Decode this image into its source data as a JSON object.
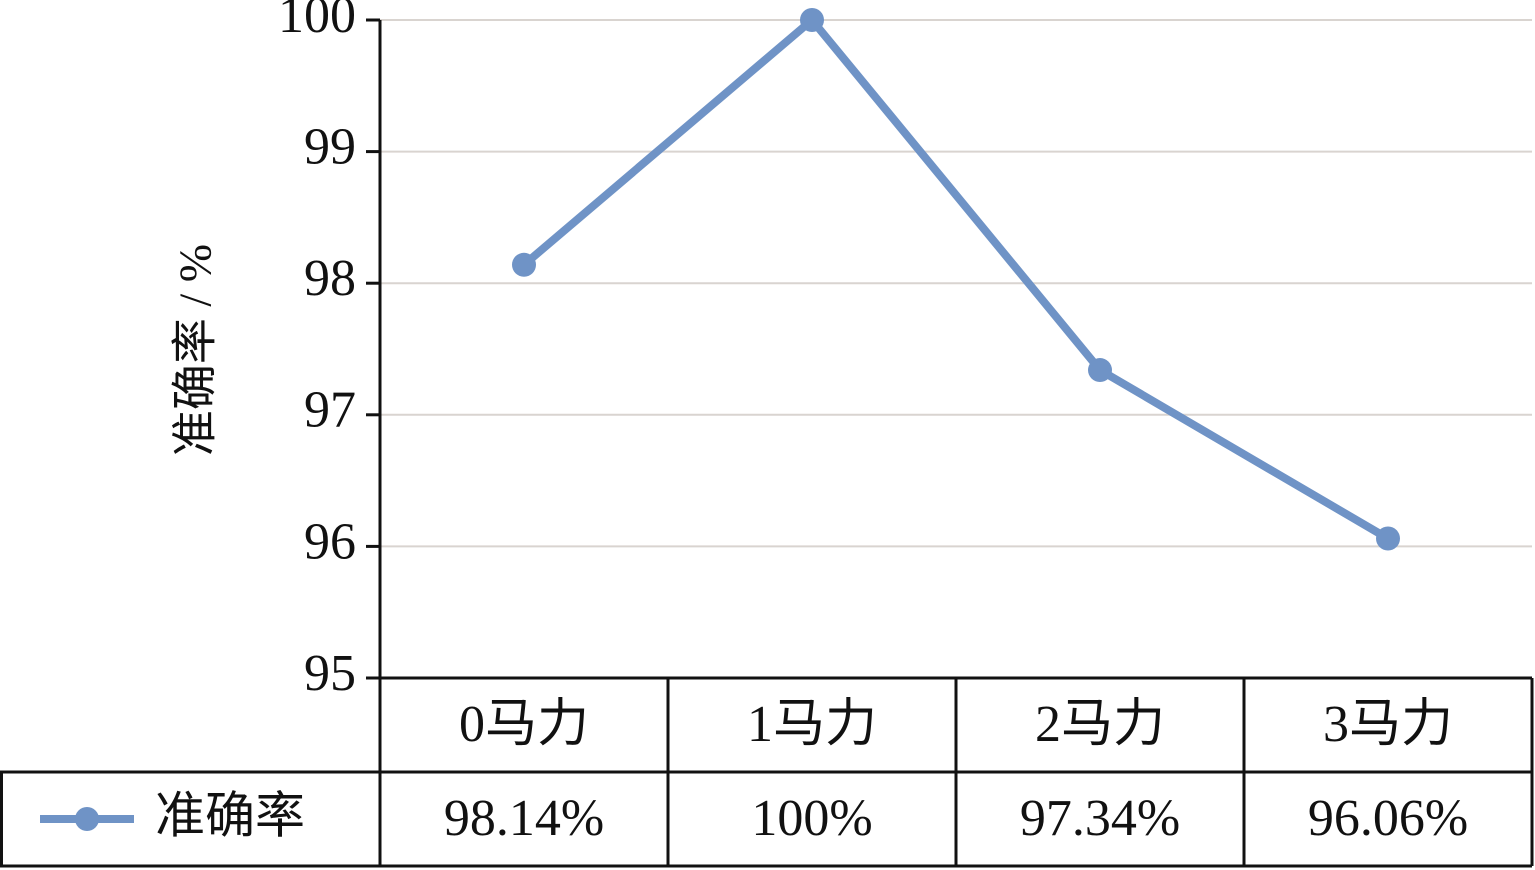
{
  "chart_data": {
    "type": "line",
    "y_label": "准确率 / %",
    "categories": [
      "0马力",
      "1马力",
      "2马力",
      "3马力"
    ],
    "series": [
      {
        "name": "准确率",
        "color": "#6f93c6",
        "values": [
          98.14,
          100,
          97.34,
          96.06
        ],
        "value_labels": [
          "98.14%",
          "100%",
          "97.34%",
          "96.06%"
        ]
      }
    ],
    "ylim": [
      95,
      100
    ],
    "yticks": [
      95,
      96,
      97,
      98,
      99,
      100
    ],
    "grid": true
  }
}
